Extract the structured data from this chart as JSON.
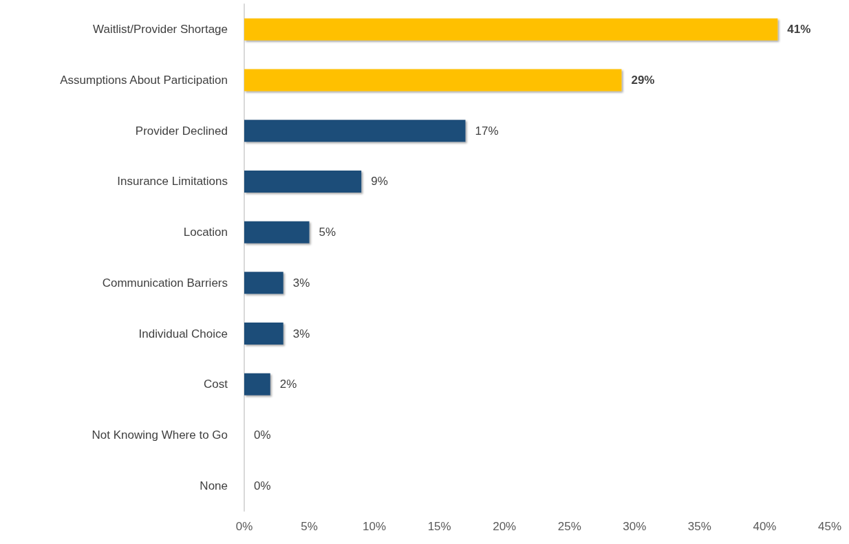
{
  "chart_data": {
    "type": "bar",
    "orientation": "horizontal",
    "categories": [
      "Waitlist/Provider Shortage",
      "Assumptions About Participation",
      "Provider Declined",
      "Insurance Limitations",
      "Location",
      "Communication Barriers",
      "Individual Choice",
      "Cost",
      "Not Knowing Where to Go",
      "None"
    ],
    "values": [
      41,
      29,
      17,
      9,
      5,
      3,
      3,
      2,
      0,
      0
    ],
    "colors": [
      "#ffc000",
      "#ffc000",
      "#1f4e79",
      "#1f4e79",
      "#1f4e79",
      "#1f4e79",
      "#1f4e79",
      "#1f4e79",
      "#1f4e79",
      "#1f4e79"
    ],
    "value_labels": [
      "41%",
      "29%",
      "17%",
      "9%",
      "5%",
      "3%",
      "3%",
      "2%",
      "0%",
      "0%"
    ],
    "xlim": [
      0,
      45
    ],
    "xticks": [
      {
        "value": 0,
        "label": "0%"
      },
      {
        "value": 5,
        "label": "5%"
      },
      {
        "value": 10,
        "label": "10%"
      },
      {
        "value": 15,
        "label": "15%"
      },
      {
        "value": 20,
        "label": "20%"
      },
      {
        "value": 25,
        "label": "25%"
      },
      {
        "value": 30,
        "label": "30%"
      },
      {
        "value": 35,
        "label": "35%"
      },
      {
        "value": 40,
        "label": "40%"
      },
      {
        "value": 45,
        "label": "45%"
      }
    ],
    "grid": false
  }
}
